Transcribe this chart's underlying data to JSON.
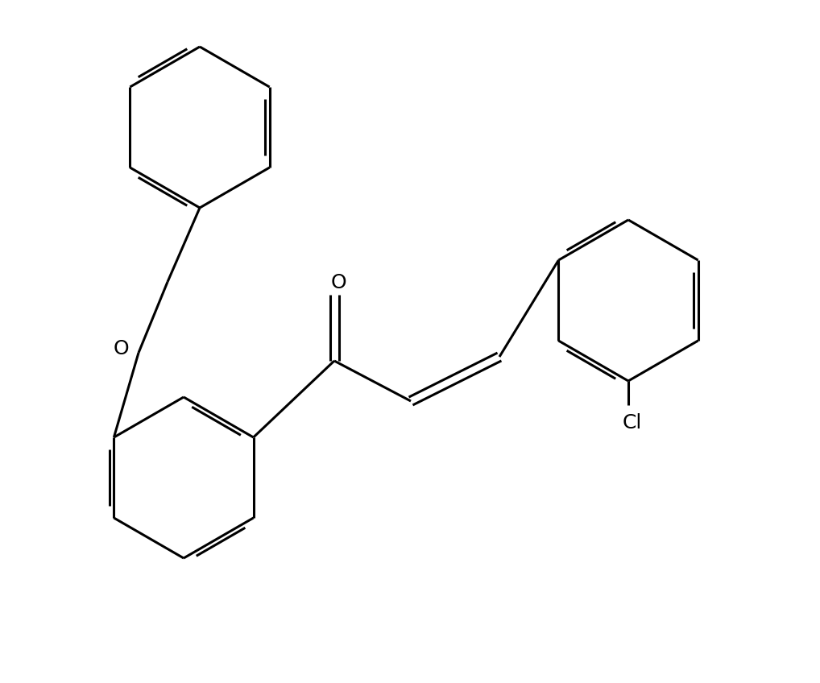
{
  "background_color": "#ffffff",
  "line_color": "#000000",
  "lw": 2.2,
  "dbo": 0.055,
  "fs": 18,
  "figsize": [
    10.18,
    8.48
  ],
  "dpi": 100,
  "xlim": [
    0.0,
    10.18
  ],
  "ylim": [
    0.0,
    8.48
  ]
}
